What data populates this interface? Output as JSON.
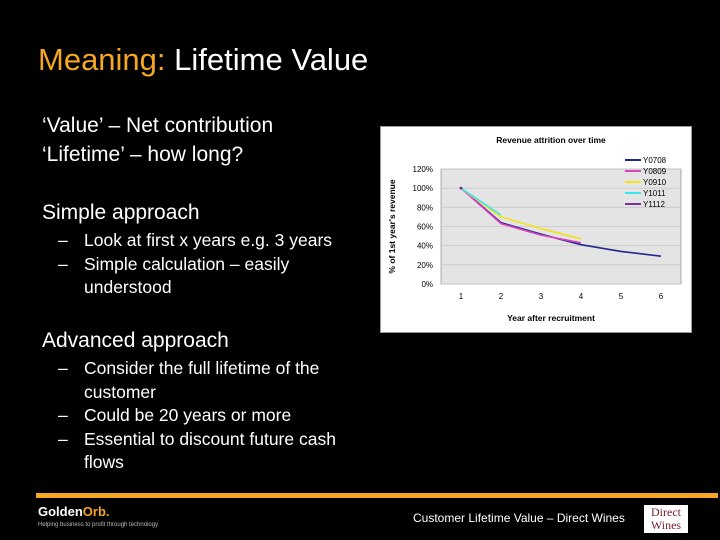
{
  "slide": {
    "title_highlight": "Meaning:",
    "title_rest": "Lifetime Value"
  },
  "content": {
    "line1": "‘Value’ – Net contribution",
    "line2": "‘Lifetime’ – how long?",
    "simple": {
      "heading": "Simple approach",
      "bullets": [
        "Look at first x years e.g. 3 years",
        "Simple calculation – easily understood"
      ]
    },
    "advanced": {
      "heading": "Advanced approach",
      "bullets": [
        "Consider the full lifetime of the customer",
        "Could be 20 years or more",
        "Essential to discount future cash flows"
      ]
    },
    "dash": "–"
  },
  "chart_data": {
    "type": "line",
    "title": "Revenue attrition over time",
    "xlabel": "Year after recruitment",
    "ylabel": "% of 1st year's revenue",
    "x": [
      1,
      2,
      3,
      4,
      5,
      6
    ],
    "ylim": [
      0,
      120
    ],
    "y_ticks": [
      "0%",
      "20%",
      "40%",
      "60%",
      "80%",
      "100%",
      "120%"
    ],
    "grid": true,
    "legend_position": "top-right",
    "series": [
      {
        "name": "Y0708",
        "color": "#1f2a8c",
        "values": [
          100,
          64,
          52,
          41,
          34,
          29
        ]
      },
      {
        "name": "Y0809",
        "color": "#e040c0",
        "values": [
          100,
          63,
          51,
          43,
          null,
          null
        ]
      },
      {
        "name": "Y0910",
        "color": "#f2e21a",
        "values": [
          100,
          70,
          58,
          47,
          null,
          null
        ]
      },
      {
        "name": "Y1011",
        "color": "#3ae6ea",
        "values": [
          100,
          72,
          null,
          null,
          null,
          null
        ]
      },
      {
        "name": "Y1112",
        "color": "#7a2fa0",
        "values": [
          100,
          null,
          null,
          null,
          null,
          null
        ]
      }
    ]
  },
  "footer": {
    "logo_part1": "Golden",
    "logo_part2": "Orb.",
    "tagline": "Helping business to profit through technology",
    "caption": "Customer Lifetime Value – Direct Wines",
    "dw_line1": "Direct",
    "dw_line2": "Wines"
  }
}
